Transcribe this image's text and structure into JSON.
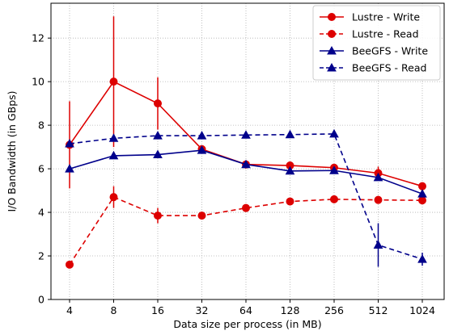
{
  "chart_data": {
    "type": "line",
    "title": "",
    "xlabel": "Data size per process (in MB)",
    "ylabel": "I/O Bandwidth (in GBps)",
    "categories": [
      "4",
      "8",
      "16",
      "32",
      "64",
      "128",
      "256",
      "512",
      "1024"
    ],
    "ylim": [
      0,
      13.6
    ],
    "yticks": [
      "0",
      "2",
      "4",
      "6",
      "8",
      "10",
      "12"
    ],
    "grid": true,
    "legend_position": "top-right",
    "series": [
      {
        "name": "Lustre - Write",
        "color": "#dd0000",
        "line_style": "solid",
        "marker": "circle",
        "values": [
          7.1,
          10.0,
          9.0,
          6.9,
          6.2,
          6.15,
          6.05,
          5.8,
          5.2
        ],
        "errors": [
          2.0,
          3.0,
          1.2,
          0.1,
          0.1,
          0.1,
          0.1,
          0.3,
          0.1
        ]
      },
      {
        "name": "Lustre - Read",
        "color": "#dd0000",
        "line_style": "dashed",
        "marker": "circle",
        "values": [
          1.6,
          4.7,
          3.85,
          3.85,
          4.2,
          4.5,
          4.6,
          4.57,
          4.55
        ],
        "errors": [
          0.1,
          0.5,
          0.35,
          0.1,
          0.1,
          0.1,
          0.1,
          0.1,
          0.1
        ]
      },
      {
        "name": "BeeGFS - Write",
        "color": "#00008b",
        "line_style": "solid",
        "marker": "triangle",
        "values": [
          6.0,
          6.6,
          6.65,
          6.85,
          6.2,
          5.9,
          5.92,
          5.6,
          4.85
        ],
        "errors": [
          0.1,
          0.1,
          0.1,
          0.1,
          0.1,
          0.1,
          0.1,
          0.1,
          0.15
        ]
      },
      {
        "name": "BeeGFS - Read",
        "color": "#00008b",
        "line_style": "dashed",
        "marker": "triangle",
        "values": [
          7.15,
          7.4,
          7.52,
          7.52,
          7.55,
          7.57,
          7.6,
          2.5,
          1.85
        ],
        "errors": [
          0.1,
          0.1,
          0.1,
          0.1,
          0.1,
          0.1,
          0.1,
          1.0,
          0.3
        ]
      }
    ]
  }
}
